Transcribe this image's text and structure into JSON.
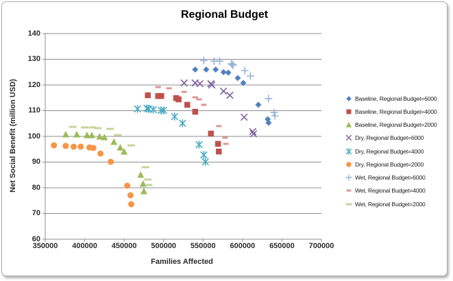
{
  "chart_data": {
    "type": "scatter",
    "title": "Regional Budget",
    "xlabel": "Families Affected",
    "ylabel": "Net Social Benefit (million USD)",
    "xlim": [
      350000,
      700000
    ],
    "ylim": [
      60,
      140
    ],
    "x_ticks": [
      350000,
      400000,
      450000,
      500000,
      550000,
      600000,
      650000,
      700000
    ],
    "y_ticks": [
      60,
      70,
      80,
      90,
      100,
      110,
      120,
      130,
      140
    ],
    "grid": "horizontal",
    "legend_position": "right",
    "axis_color": "#8c8c8c",
    "series": [
      {
        "name": "Baseline, Regional Budget=6000",
        "marker": "diamond",
        "color": "#4F81BD",
        "points": [
          [
            540000,
            126
          ],
          [
            554000,
            126
          ],
          [
            566000,
            126
          ],
          [
            576000,
            125
          ],
          [
            582000,
            124.8
          ],
          [
            594000,
            122.7
          ],
          [
            601000,
            120.8
          ],
          [
            620000,
            112.3
          ],
          [
            632000,
            106.7
          ],
          [
            633000,
            105.3
          ]
        ]
      },
      {
        "name": "Baseline, Regional Budget=4000",
        "marker": "square",
        "color": "#C0504D",
        "points": [
          [
            480000,
            116
          ],
          [
            493000,
            115.7
          ],
          [
            497000,
            115.7
          ],
          [
            516000,
            114.9
          ],
          [
            519000,
            114.4
          ],
          [
            530000,
            112.3
          ],
          [
            540000,
            109.6
          ],
          [
            560000,
            101.1
          ],
          [
            569000,
            97.1
          ],
          [
            570000,
            94.1
          ]
        ]
      },
      {
        "name": "Baseline, Regional Budget=2000",
        "marker": "triangle",
        "color": "#9BBB59",
        "points": [
          [
            376000,
            100.8
          ],
          [
            390000,
            100.8
          ],
          [
            403000,
            100.5
          ],
          [
            409000,
            100.5
          ],
          [
            419000,
            100
          ],
          [
            425000,
            99.7
          ],
          [
            437000,
            97.9
          ],
          [
            445000,
            95.7
          ],
          [
            450000,
            94.1
          ],
          [
            471000,
            85.1
          ],
          [
            474000,
            81.6
          ],
          [
            475000,
            78.7
          ]
        ]
      },
      {
        "name": "Dry, Regional Budget=6000",
        "marker": "x",
        "color": "#8064A2",
        "points": [
          [
            526000,
            120.8
          ],
          [
            540000,
            120.8
          ],
          [
            546000,
            120.5
          ],
          [
            560000,
            120.5
          ],
          [
            561000,
            120
          ],
          [
            576000,
            117.6
          ],
          [
            584000,
            116
          ],
          [
            602000,
            107.5
          ],
          [
            613000,
            101.9
          ],
          [
            614000,
            101
          ]
        ]
      },
      {
        "name": "Dry, Regional Budget=4000",
        "marker": "star",
        "color": "#4BACC6",
        "points": [
          [
            467000,
            110.7
          ],
          [
            479000,
            110.9
          ],
          [
            481000,
            110.7
          ],
          [
            487000,
            110.4
          ],
          [
            497000,
            110.1
          ],
          [
            500000,
            110.1
          ],
          [
            514000,
            107.7
          ],
          [
            524000,
            105.1
          ],
          [
            545000,
            96.8
          ],
          [
            551000,
            92.8
          ],
          [
            553000,
            90.1
          ]
        ]
      },
      {
        "name": "Dry, Regional Budget=2000",
        "marker": "circle",
        "color": "#F79646",
        "points": [
          [
            361000,
            96.5
          ],
          [
            376000,
            96.3
          ],
          [
            386000,
            96
          ],
          [
            395000,
            96
          ],
          [
            406000,
            95.7
          ],
          [
            411000,
            95.5
          ],
          [
            420000,
            93.3
          ],
          [
            433000,
            90.1
          ],
          [
            454000,
            80.8
          ],
          [
            458000,
            77.1
          ],
          [
            459000,
            73.6
          ]
        ]
      },
      {
        "name": "Wet, Regional Budget=6000",
        "marker": "plus",
        "color": "#95B3D7",
        "points": [
          [
            551000,
            129.5
          ],
          [
            564000,
            129.3
          ],
          [
            571000,
            129.3
          ],
          [
            586000,
            128.3
          ],
          [
            587000,
            128
          ],
          [
            588000,
            127.7
          ],
          [
            603000,
            125.6
          ],
          [
            610000,
            123.5
          ],
          [
            633000,
            114.7
          ],
          [
            640000,
            109.3
          ],
          [
            641000,
            108
          ]
        ]
      },
      {
        "name": "Wet, Regional Budget=4000",
        "marker": "dash",
        "color": "#D99694",
        "points": [
          [
            493000,
            119.2
          ],
          [
            507000,
            118.7
          ],
          [
            526000,
            117.3
          ],
          [
            540000,
            115.2
          ],
          [
            545000,
            114.4
          ],
          [
            551000,
            112.3
          ],
          [
            570000,
            104
          ],
          [
            578000,
            99.5
          ],
          [
            579000,
            97.1
          ]
        ]
      },
      {
        "name": "Wet, Regional Budget=2000",
        "marker": "dash-long",
        "color": "#C3D69B",
        "points": [
          [
            385000,
            103.7
          ],
          [
            400000,
            103.5
          ],
          [
            410000,
            103.5
          ],
          [
            417000,
            103.2
          ],
          [
            432000,
            102.9
          ],
          [
            442000,
            100.5
          ],
          [
            459000,
            96.5
          ],
          [
            477000,
            88
          ],
          [
            480000,
            83.2
          ],
          [
            481000,
            81.1
          ]
        ]
      }
    ]
  }
}
